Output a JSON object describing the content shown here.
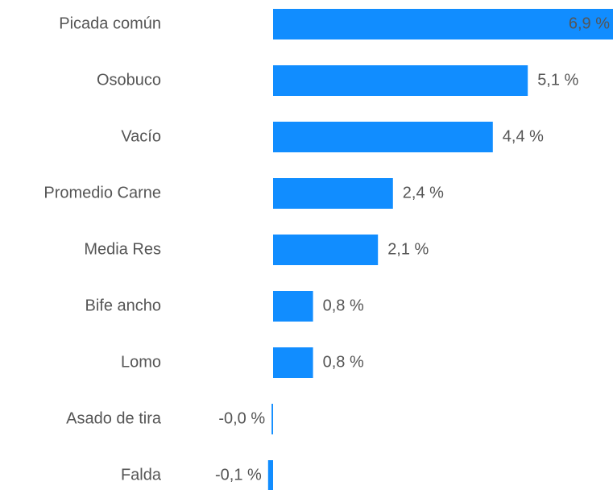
{
  "chart_data": {
    "type": "bar",
    "orientation": "horizontal",
    "categories": [
      "Picada común",
      "Osobuco",
      "Vacío",
      "Promedio Carne",
      "Media Res",
      "Bife ancho",
      "Lomo",
      "Asado de tira",
      "Falda"
    ],
    "values": [
      6.9,
      5.1,
      4.4,
      2.4,
      2.1,
      0.8,
      0.8,
      -0.03,
      -0.1
    ],
    "value_labels": [
      "6,9 %",
      "5,1 %",
      "4,4 %",
      "2,4 %",
      "2,1 %",
      "0,8 %",
      "0,8 %",
      "-0,0 %",
      "-0,1 %"
    ],
    "color": "#118dff"
  }
}
